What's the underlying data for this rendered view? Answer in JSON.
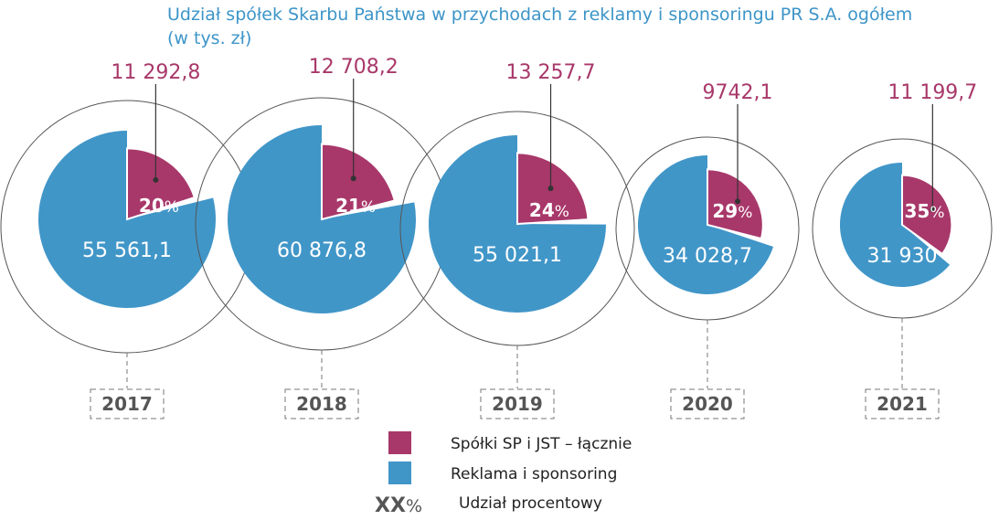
{
  "chart_data": {
    "type": "pie",
    "title": "Udział spółek Skarbu Państwa w przychodach z reklamy i sponsoringu PR S.A. ogółem",
    "subtitle": "(w tys. zł)",
    "categories": [
      "2017",
      "2018",
      "2019",
      "2020",
      "2021"
    ],
    "series": [
      {
        "name": "Spółki SP i JST – łącznie",
        "color": "#a8386a",
        "values": [
          11292.8,
          12708.2,
          13257.7,
          9742.1,
          11199.7
        ],
        "labels": [
          "11 292,8",
          "12 708,2",
          "13 257,7",
          "9742,1",
          "11 199,7"
        ]
      },
      {
        "name": "Reklama i sponsoring",
        "color": "#4196c8",
        "values": [
          55561.1,
          60876.8,
          55021.1,
          34028.7,
          31930
        ],
        "labels": [
          "55 561,1",
          "60 876,8",
          "55 021,1",
          "34 028,7",
          "31 930"
        ]
      }
    ],
    "percentages": [
      20,
      21,
      24,
      29,
      35
    ],
    "percent_sign": "%",
    "legend": {
      "position": "bottom-center",
      "items": [
        "Spółki SP i JST – łącznie",
        "Reklama i sponsoring"
      ],
      "percent_symbol": "XX",
      "percent_label": "Udział procentowy"
    }
  }
}
